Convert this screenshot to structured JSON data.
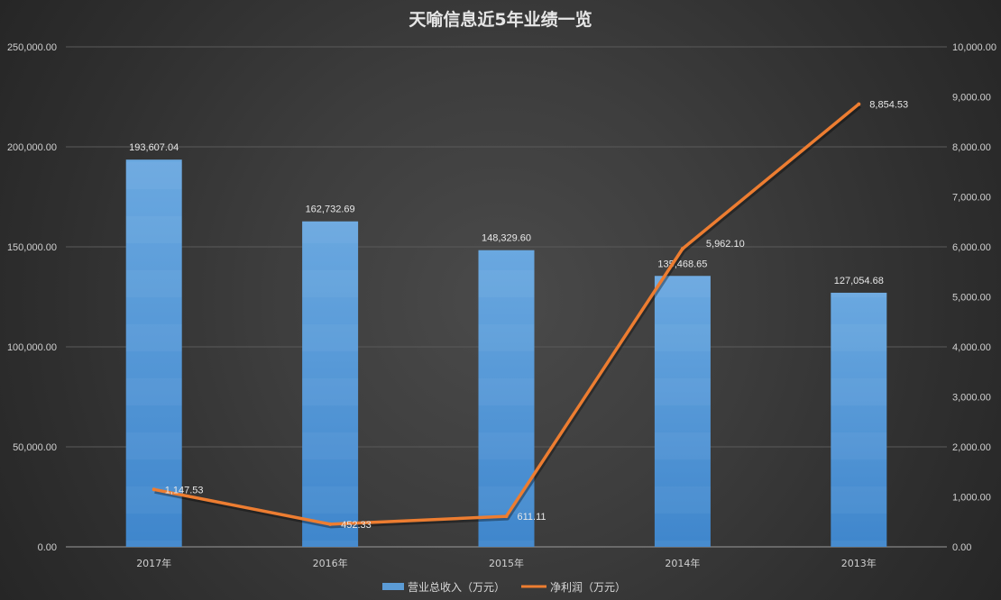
{
  "chart_data": {
    "type": "bar",
    "title": "天喻信息近5年业绩一览",
    "categories": [
      "2017年",
      "2016年",
      "2015年",
      "2014年",
      "2013年"
    ],
    "series": [
      {
        "name": "营业总收入（万元）",
        "type": "bar",
        "axis": "left",
        "color": "#5b9bd5",
        "values": [
          193607.04,
          162732.69,
          148329.6,
          135468.65,
          127054.68
        ],
        "labels": [
          "193,607.04",
          "162,732.69",
          "148,329.60",
          "135,468.65",
          "127,054.68"
        ]
      },
      {
        "name": "净利润（万元）",
        "type": "line",
        "axis": "right",
        "color": "#ed7d31",
        "values": [
          1147.53,
          452.33,
          611.11,
          5962.1,
          8854.53
        ],
        "labels": [
          "1,147.53",
          "452.33",
          "611.11",
          "5,962.10",
          "8,854.53"
        ]
      }
    ],
    "y_left": {
      "min": 0,
      "max": 250000,
      "step": 50000,
      "ticks": [
        "0.00",
        "50,000.00",
        "100,000.00",
        "150,000.00",
        "200,000.00",
        "250,000.00"
      ]
    },
    "y_right": {
      "min": 0,
      "max": 10000,
      "step": 1000,
      "ticks": [
        "0.00",
        "1,000.00",
        "2,000.00",
        "3,000.00",
        "4,000.00",
        "5,000.00",
        "6,000.00",
        "7,000.00",
        "8,000.00",
        "9,000.00",
        "10,000.00"
      ]
    },
    "grid": true,
    "legend_position": "bottom"
  }
}
